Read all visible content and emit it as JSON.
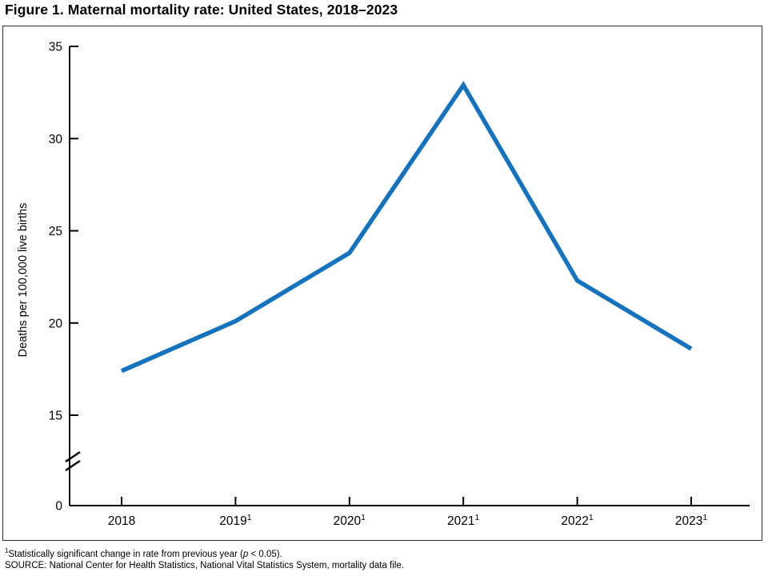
{
  "page": {
    "title": "Figure 1. Maternal mortality rate: United States, 2018–2023"
  },
  "footnote": {
    "sup": "1",
    "pre": "Statistically significant change in rate from previous year (",
    "p_var": "p",
    "post": " < 0.05)."
  },
  "source": "SOURCE: National Center for Health Statistics, National Vital Statistics System, mortality data file.",
  "colors": {
    "line": "#1573BD",
    "axis": "#000000",
    "frame": "#2e2e2e",
    "text": "#000000"
  },
  "chart_data": {
    "type": "line",
    "title": "Figure 1. Maternal mortality rate: United States, 2018–2023",
    "xlabel": "",
    "ylabel": "Deaths per 100,000 live births",
    "x": [
      "2018",
      "2019",
      "2020",
      "2021",
      "2022",
      "2023"
    ],
    "x_tick_labels": [
      {
        "year": "2018",
        "sup": ""
      },
      {
        "year": "2019",
        "sup": "1"
      },
      {
        "year": "2020",
        "sup": "1"
      },
      {
        "year": "2021",
        "sup": "1"
      },
      {
        "year": "2022",
        "sup": "1"
      },
      {
        "year": "2023",
        "sup": "1"
      }
    ],
    "series": [
      {
        "name": "Maternal mortality rate",
        "values": [
          17.4,
          20.1,
          23.8,
          32.9,
          22.3,
          18.6
        ]
      }
    ],
    "y_ticks_shown": [
      35,
      30,
      25,
      20,
      15
    ],
    "y_zero_label": "0",
    "ylim": [
      0,
      35
    ],
    "y_display_range": [
      15,
      35
    ],
    "axis_break_between": [
      0,
      15
    ],
    "grid": false,
    "legend": "none"
  }
}
